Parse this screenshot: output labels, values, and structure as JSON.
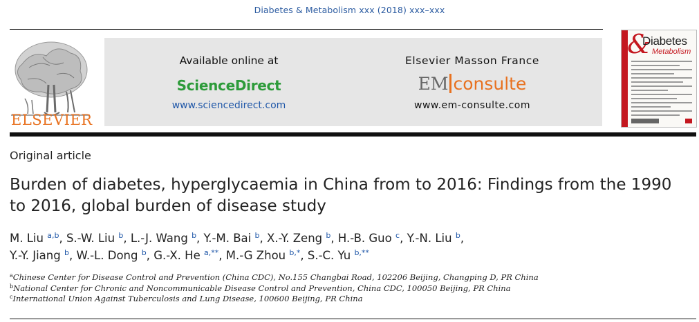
{
  "journal_ref": "Diabetes & Metabolism xxx (2018) xxx–xxx",
  "publisher_logo": "ELSEVIER",
  "availability": {
    "label": "Available online at",
    "brand": "ScienceDirect",
    "url": "www.sciencedirect.com"
  },
  "em": {
    "publisher": "Elsevier Masson France",
    "logo_em": "EM",
    "logo_consulte": "consulte",
    "url": "www.em-consulte.com"
  },
  "cover": {
    "amp": "&",
    "title_1": "Diabetes",
    "title_2": "Metabolism"
  },
  "article_type": "Original article",
  "title": "Burden of diabetes, hyperglycaemia in China from to 2016: Findings from the 1990 to 2016, global burden of disease study",
  "authors": [
    {
      "name": "M. Liu",
      "sup": "a,b"
    },
    {
      "name": "S.-W. Liu",
      "sup": "b"
    },
    {
      "name": "L.-J. Wang",
      "sup": "b"
    },
    {
      "name": "Y.-M. Bai",
      "sup": "b"
    },
    {
      "name": "X.-Y. Zeng",
      "sup": "b"
    },
    {
      "name": "H.-B. Guo",
      "sup": "c"
    },
    {
      "name": "Y.-N. Liu",
      "sup": "b"
    },
    {
      "name": "Y.-Y. Jiang",
      "sup": "b"
    },
    {
      "name": "W.-L. Dong",
      "sup": "b"
    },
    {
      "name": "G.-X. He",
      "sup": "a,**"
    },
    {
      "name": "M.-G Zhou",
      "sup": "b,*"
    },
    {
      "name": "S.-C. Yu",
      "sup": "b,**"
    }
  ],
  "affiliations": [
    {
      "label": "a",
      "text": "Chinese Center for Disease Control and Prevention (China CDC), No.155 Changbai Road, 102206 Beijing, Changping D, PR China"
    },
    {
      "label": "b",
      "text": "National Center for Chronic and Noncommunicable Disease Control and Prevention, China CDC, 100050 Beijing, PR China"
    },
    {
      "label": "c",
      "text": "International Union Against Tuberculosis and Lung Disease, 100600 Beijing, PR China"
    }
  ],
  "colors": {
    "link_blue": "#1f57a8",
    "sd_green": "#2d9b3a",
    "elsevier_orange": "#e8711f",
    "cover_red": "#c4171f",
    "panel_grey": "#e6e6e6"
  }
}
